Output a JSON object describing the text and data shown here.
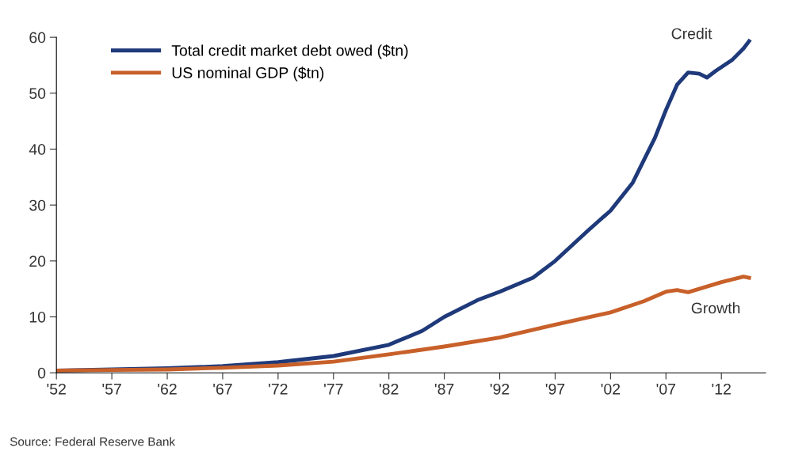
{
  "chart_data": {
    "type": "line",
    "xlim": [
      1952,
      2016
    ],
    "xticks": [
      {
        "value": 1952,
        "label": "'52"
      },
      {
        "value": 1957,
        "label": "'57"
      },
      {
        "value": 1962,
        "label": "'62"
      },
      {
        "value": 1967,
        "label": "'67"
      },
      {
        "value": 1972,
        "label": "'72"
      },
      {
        "value": 1977,
        "label": "'77"
      },
      {
        "value": 1982,
        "label": "'82"
      },
      {
        "value": 1987,
        "label": "'87"
      },
      {
        "value": 1992,
        "label": "'92"
      },
      {
        "value": 1997,
        "label": "'97"
      },
      {
        "value": 2002,
        "label": "'02"
      },
      {
        "value": 2007,
        "label": "'07"
      },
      {
        "value": 2012,
        "label": "'12"
      }
    ],
    "ylim": [
      0,
      60
    ],
    "yticks": [
      0,
      10,
      20,
      30,
      40,
      50,
      60
    ],
    "grid": false,
    "legend": "top left",
    "line_style": "solid",
    "marker": "none",
    "series": [
      {
        "name": "Total credit market debt owed ($tn)",
        "color": "#1f3a7a",
        "x": [
          1952,
          1957,
          1962,
          1967,
          1972,
          1977,
          1982,
          1985,
          1987,
          1990,
          1992,
          1995,
          1997,
          2000,
          2002,
          2004,
          2006,
          2007,
          2008,
          2009,
          2010,
          2010.7,
          2011.5,
          2013,
          2014,
          2014.5
        ],
        "values": [
          0.4,
          0.6,
          0.8,
          1.2,
          1.9,
          3.0,
          5.0,
          7.5,
          10,
          13,
          14.5,
          17,
          20,
          25.5,
          29,
          34,
          42,
          47,
          51.5,
          53.7,
          53.5,
          52.8,
          54,
          56,
          58,
          59.3
        ]
      },
      {
        "name": "US nominal GDP ($tn)",
        "color": "#c8602a",
        "x": [
          1952,
          1957,
          1962,
          1967,
          1972,
          1977,
          1982,
          1987,
          1992,
          1997,
          2002,
          2005,
          2007,
          2008,
          2009,
          2010,
          2012,
          2014,
          2014.5
        ],
        "values": [
          0.4,
          0.5,
          0.6,
          0.9,
          1.3,
          2.0,
          3.3,
          4.7,
          6.3,
          8.6,
          10.8,
          12.8,
          14.5,
          14.8,
          14.4,
          15.0,
          16.2,
          17.2,
          17.0
        ]
      }
    ],
    "annotations": [
      "Credit",
      "Growth",
      "Source: Federal Reserve Bank"
    ]
  }
}
